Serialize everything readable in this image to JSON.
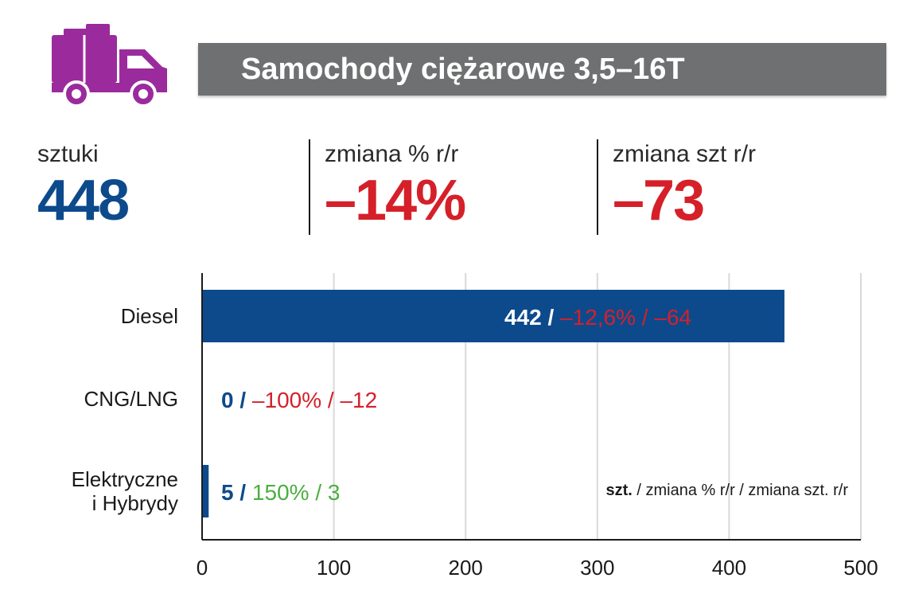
{
  "header": {
    "title": "Samochody ciężarowe 3,5–16T",
    "icon": "truck-icon",
    "icon_color": "#9b2b9d",
    "bar_color": "#6f7071"
  },
  "stats": [
    {
      "label": "sztuki",
      "value": "448",
      "color": "#0d4a8c"
    },
    {
      "label": "zmiana % r/r",
      "value": "–14%",
      "color": "#d5202a"
    },
    {
      "label": "zmiana szt r/r",
      "value": "–73",
      "color": "#d5202a"
    }
  ],
  "chart_data": {
    "type": "bar",
    "orientation": "horizontal",
    "categories": [
      "Diesel",
      "CNG/LNG",
      "Elektryczne i Hybrydy"
    ],
    "category_lines": [
      [
        "Diesel"
      ],
      [
        "CNG/LNG"
      ],
      [
        "Elektryczne",
        "i Hybrydy"
      ]
    ],
    "values": [
      442,
      0,
      5
    ],
    "data_labels": [
      {
        "count": "442",
        "sep1": " / ",
        "rest": "–12,6% / –64",
        "rest_color": "#d5202a",
        "count_color": "#ffffff"
      },
      {
        "count": "0",
        "sep1": " / ",
        "rest": "–100% / –12",
        "rest_color": "#d5202a",
        "count_color": "#0d4a8c"
      },
      {
        "count": "5",
        "sep1": " / ",
        "rest": "150% / 3",
        "rest_color": "#4caf3f",
        "count_color": "#0d4a8c"
      }
    ],
    "xlim": [
      0,
      500
    ],
    "xticks": [
      0,
      100,
      200,
      300,
      400,
      500
    ],
    "grid": true,
    "bar_color": "#0d4a8c",
    "legend_note_bold": "szt.",
    "legend_note_rest": " / zmiana % r/r / zmiana szt. r/r"
  }
}
